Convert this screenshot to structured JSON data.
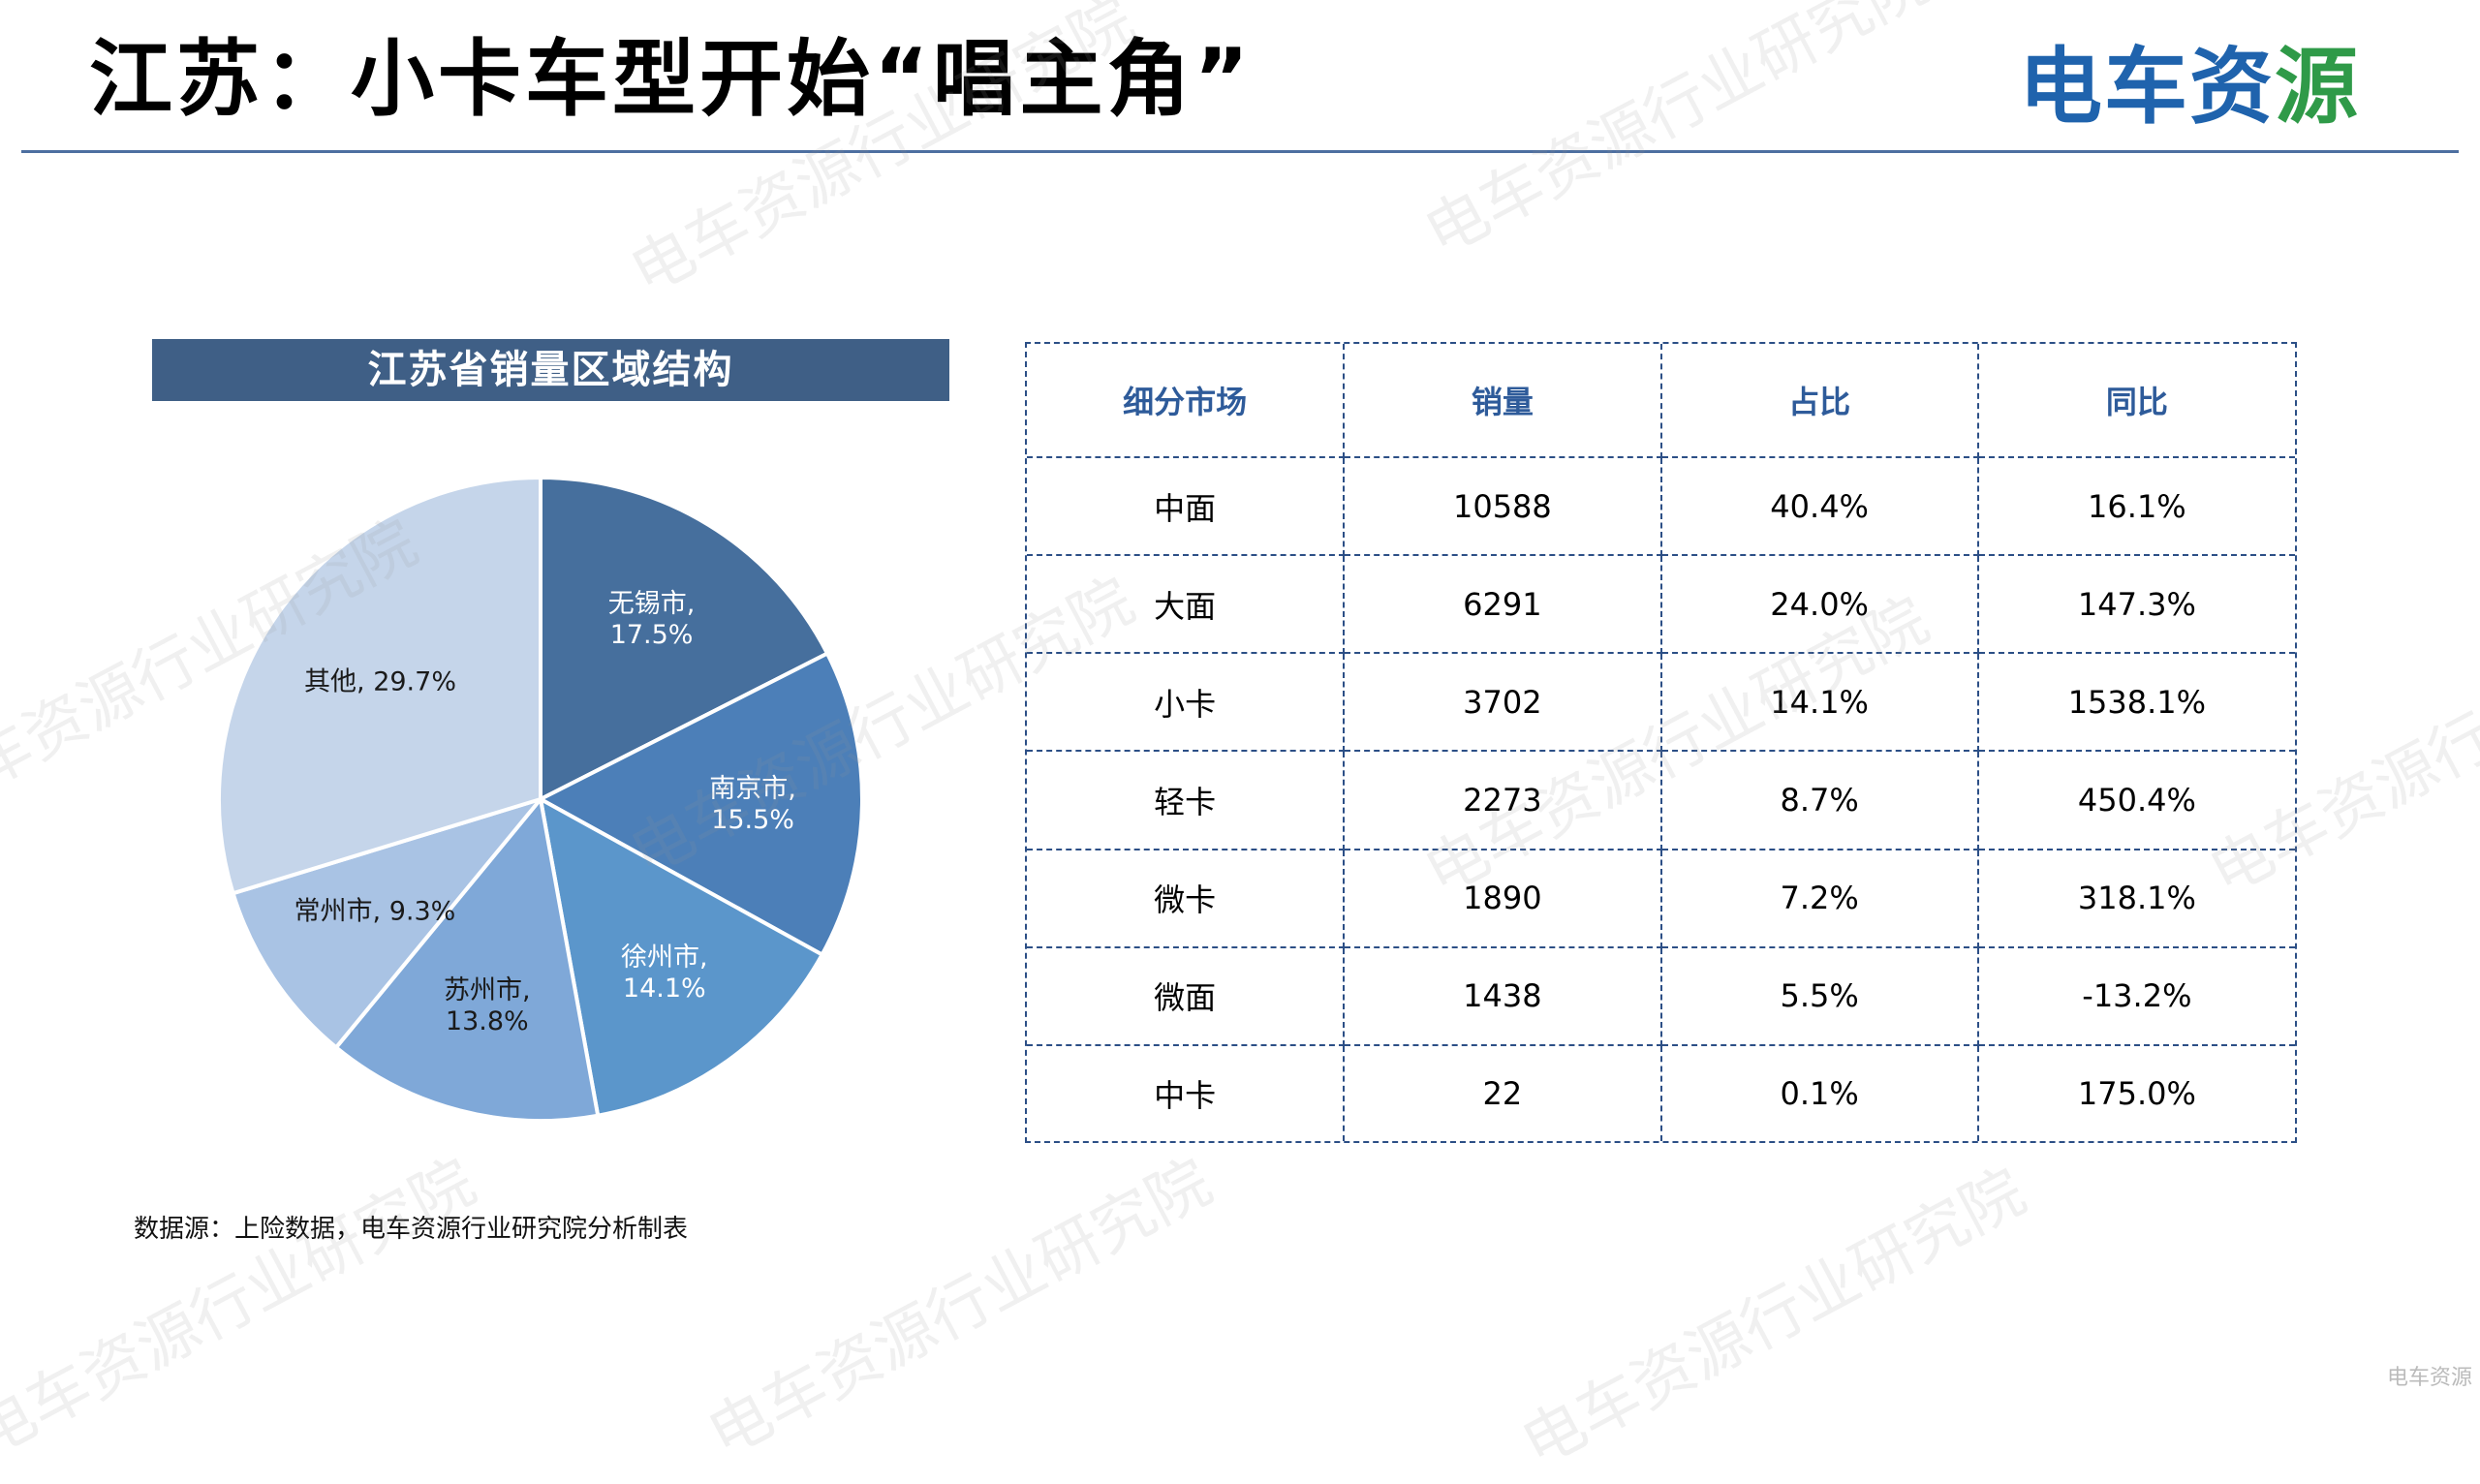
{
  "title": "江苏：小卡车型开始“唱主角”",
  "logo": {
    "text_main": "电车资",
    "text_accent": "源"
  },
  "chart_title": "江苏省销量区域结构",
  "chart_data": {
    "type": "pie",
    "title": "江苏省销量区域结构",
    "slices": [
      {
        "label": "无锡市",
        "value": 17.5,
        "display": "17.5%",
        "color": "#466f9d"
      },
      {
        "label": "南京市",
        "value": 15.5,
        "display": "15.5%",
        "color": "#4c7fb8"
      },
      {
        "label": "徐州市",
        "value": 14.1,
        "display": "14.1%",
        "color": "#5b96cb"
      },
      {
        "label": "苏州市",
        "value": 13.8,
        "display": "13.8%",
        "color": "#7fa8d8"
      },
      {
        "label": "常州市",
        "value": 9.3,
        "display": "9.3%",
        "color": "#a9c3e4"
      },
      {
        "label": "其他",
        "value": 29.7,
        "display": "29.7%",
        "color": "#c5d5ea"
      }
    ]
  },
  "table": {
    "headers": [
      "细分市场",
      "销量",
      "占比",
      "同比"
    ],
    "rows": [
      [
        "中面",
        "10588",
        "40.4%",
        "16.1%"
      ],
      [
        "大面",
        "6291",
        "24.0%",
        "147.3%"
      ],
      [
        "小卡",
        "3702",
        "14.1%",
        "1538.1%"
      ],
      [
        "轻卡",
        "2273",
        "8.7%",
        "450.4%"
      ],
      [
        "微卡",
        "1890",
        "7.2%",
        "318.1%"
      ],
      [
        "微面",
        "1438",
        "5.5%",
        "-13.2%"
      ],
      [
        "中卡",
        "22",
        "0.1%",
        "175.0%"
      ]
    ]
  },
  "source": "数据源：上险数据，电车资源行业研究院分析制表",
  "watermark_text": "电车资源行业研究院",
  "corner_mark": "电车资源"
}
